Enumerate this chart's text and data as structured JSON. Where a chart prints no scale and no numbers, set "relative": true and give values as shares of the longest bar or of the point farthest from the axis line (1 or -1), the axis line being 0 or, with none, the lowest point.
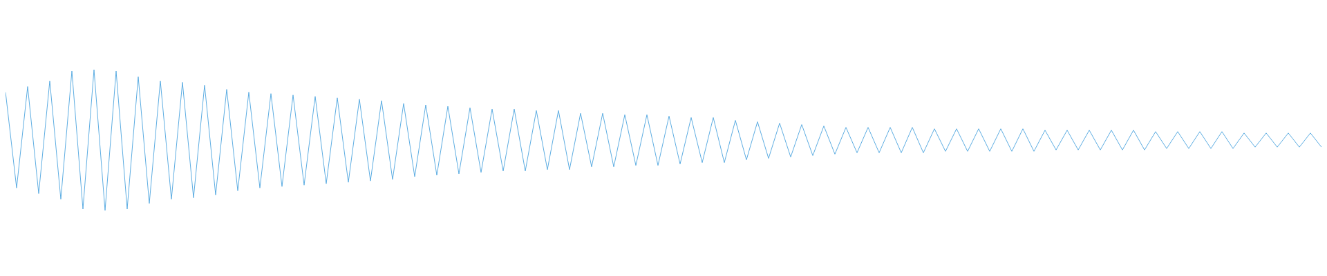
{
  "chart_data": {
    "type": "line",
    "relative": true,
    "color": "#5dade2",
    "marker": "none",
    "grid": false,
    "legend": false,
    "categories": [
      null,
      null,
      null,
      null,
      null,
      null,
      null,
      null,
      null,
      null,
      null,
      null,
      null,
      null,
      null,
      null,
      null,
      null,
      null,
      null,
      null,
      null,
      null,
      null,
      null,
      null,
      null,
      null,
      null,
      null,
      null,
      null,
      null,
      null,
      null,
      null,
      null,
      null,
      null,
      null,
      null,
      null,
      null,
      null,
      null,
      null,
      null,
      null,
      null,
      null,
      null,
      null,
      null,
      null,
      null,
      null,
      null,
      null,
      null,
      null,
      null,
      null,
      null,
      null,
      null,
      null,
      null,
      null,
      null,
      null,
      null,
      null,
      null,
      null,
      null,
      null,
      null,
      null,
      null,
      null,
      null,
      null,
      null,
      null,
      null,
      null,
      null,
      null,
      null,
      null,
      null,
      null,
      null,
      null,
      null,
      null,
      null,
      null,
      null,
      null,
      null,
      null,
      null,
      null,
      null,
      null,
      null,
      null,
      null,
      null,
      null,
      null,
      null,
      null,
      null,
      null,
      null,
      null,
      null,
      null
    ],
    "values": [
      0.84,
      0.16,
      0.88,
      0.12,
      0.92,
      0.08,
      0.99,
      0.01,
      1,
      0,
      0.99,
      0.01,
      0.95,
      0.05,
      0.92,
      0.08,
      0.91,
      0.09,
      0.89,
      0.11,
      0.86,
      0.14,
      0.84,
      0.16,
      0.83,
      0.17,
      0.82,
      0.18,
      0.81,
      0.19,
      0.8,
      0.2,
      0.79,
      0.21,
      0.78,
      0.22,
      0.76,
      0.24,
      0.75,
      0.25,
      0.74,
      0.26,
      0.73,
      0.27,
      0.72,
      0.28,
      0.72,
      0.28,
      0.71,
      0.29,
      0.71,
      0.29,
      0.69,
      0.31,
      0.69,
      0.31,
      0.68,
      0.32,
      0.68,
      0.32,
      0.67,
      0.33,
      0.66,
      0.34,
      0.66,
      0.34,
      0.64,
      0.36,
      0.63,
      0.37,
      0.62,
      0.38,
      0.61,
      0.39,
      0.6,
      0.4,
      0.59,
      0.41,
      0.59,
      0.41,
      0.59,
      0.41,
      0.59,
      0.41,
      0.58,
      0.42,
      0.58,
      0.42,
      0.58,
      0.42,
      0.58,
      0.42,
      0.58,
      0.42,
      0.57,
      0.43,
      0.57,
      0.43,
      0.57,
      0.43,
      0.57,
      0.43,
      0.57,
      0.43,
      0.56,
      0.44,
      0.56,
      0.44,
      0.56,
      0.44,
      0.56,
      0.44,
      0.55,
      0.45,
      0.55,
      0.45,
      0.55,
      0.45,
      0.55,
      0.45
    ]
  }
}
